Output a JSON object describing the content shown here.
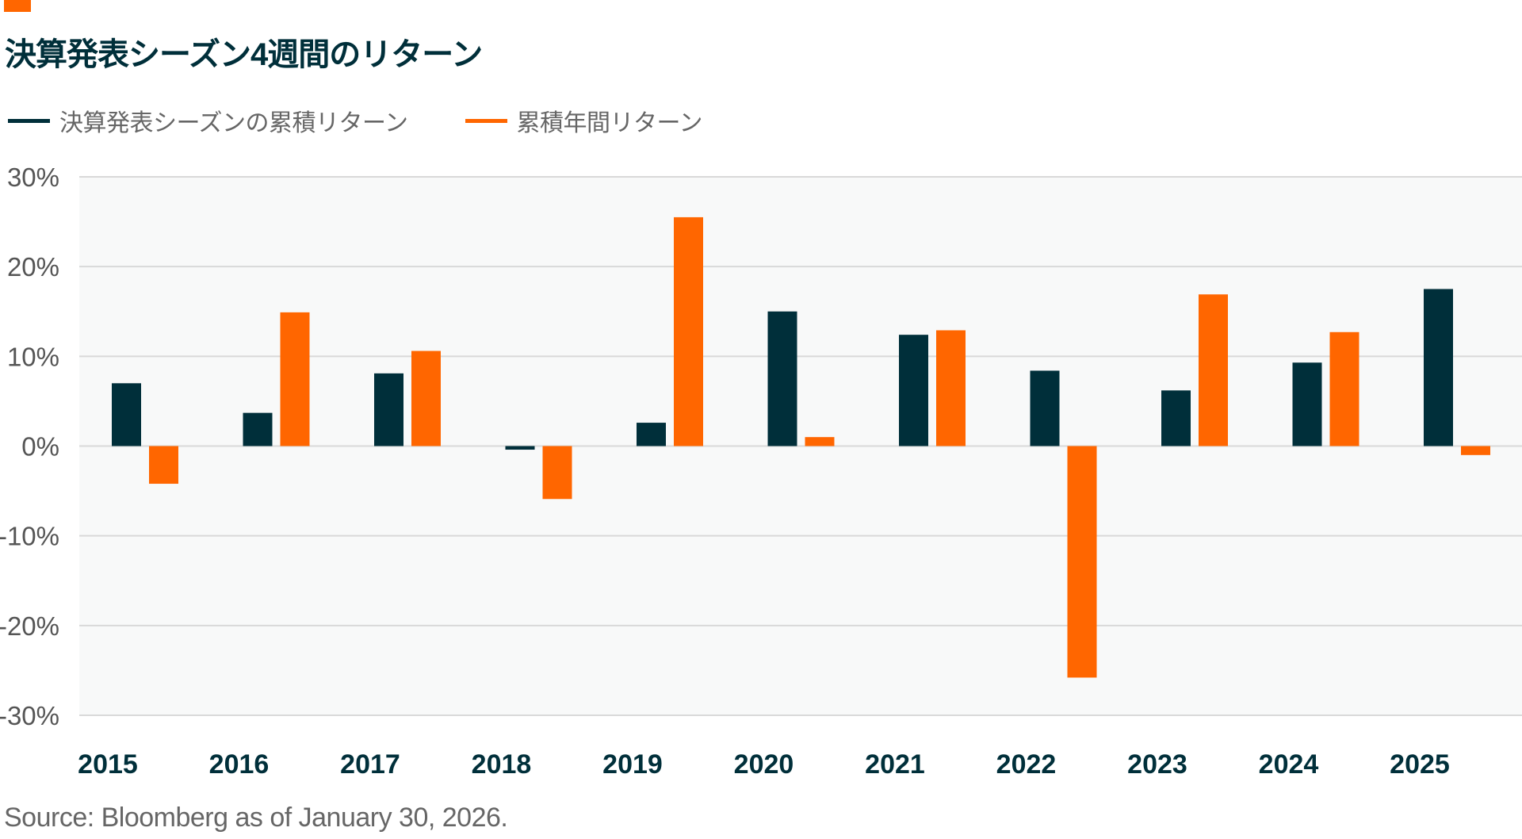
{
  "colors": {
    "accent": "#ff6600",
    "title": "#002f3a",
    "series_dark": "#002f3a",
    "series_orange": "#ff6600",
    "plot_bg": "#f8f9f9",
    "grid": "#d9d9d9"
  },
  "title": "決算発表シーズン4週間のリターン",
  "source": "Source: Bloomberg as of January 30, 2026.",
  "chart_data": {
    "type": "bar",
    "title": "決算発表シーズン4週間のリターン",
    "xlabel": "",
    "ylabel": "",
    "categories": [
      "2015",
      "2016",
      "2017",
      "2018",
      "2019",
      "2020",
      "2021",
      "2022",
      "2023",
      "2024",
      "2025"
    ],
    "series": [
      {
        "name": "決算発表シーズンの累積リターン",
        "color": "#002f3a",
        "values": [
          7.0,
          3.7,
          8.1,
          -0.4,
          2.6,
          15.0,
          12.4,
          8.4,
          6.2,
          9.3,
          17.5
        ]
      },
      {
        "name": "累積年間リターン",
        "color": "#ff6600",
        "values": [
          -4.2,
          14.9,
          10.6,
          -5.9,
          25.5,
          1.0,
          12.9,
          -25.8,
          16.9,
          12.7,
          -1.0
        ]
      }
    ],
    "ylim": [
      -30,
      30
    ],
    "yticks": [
      30,
      20,
      10,
      0,
      -10,
      -20,
      -30
    ],
    "ytick_labels": [
      "30%",
      "20%",
      "10%",
      "0%",
      "-10%",
      "-20%",
      "-30%"
    ],
    "grid": true,
    "legend_position": "top-left",
    "unit": "%"
  }
}
